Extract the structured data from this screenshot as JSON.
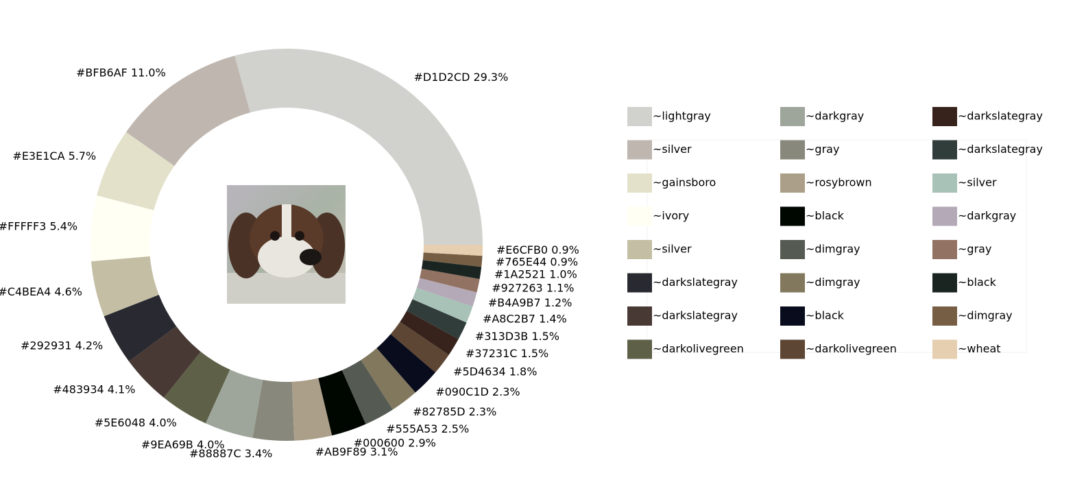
{
  "chart_data": {
    "type": "pie",
    "style": "donut",
    "center_image": "dog-photo",
    "slices": [
      {
        "label": "#D1D2CD 29.3%",
        "value": 29.3,
        "color": "#D1D2CD"
      },
      {
        "label": "#BFB6AF 11.0%",
        "value": 11.0,
        "color": "#BFB6AF"
      },
      {
        "label": "#E3E1CA 5.7%",
        "value": 5.7,
        "color": "#E3E1CA"
      },
      {
        "label": "#FFFFF3 5.4%",
        "value": 5.4,
        "color": "#FFFFF3"
      },
      {
        "label": "#C4BEA4 4.6%",
        "value": 4.6,
        "color": "#C4BEA4"
      },
      {
        "label": "#292931 4.2%",
        "value": 4.2,
        "color": "#292931"
      },
      {
        "label": "#483934 4.1%",
        "value": 4.1,
        "color": "#483934"
      },
      {
        "label": "#5E6048 4.0%",
        "value": 4.0,
        "color": "#5E6048"
      },
      {
        "label": "#9EA69B 4.0%",
        "value": 4.0,
        "color": "#9EA69B"
      },
      {
        "label": "#88887C 3.4%",
        "value": 3.4,
        "color": "#88887C"
      },
      {
        "label": "#AB9F89 3.1%",
        "value": 3.1,
        "color": "#AB9F89"
      },
      {
        "label": "#000600 2.9%",
        "value": 2.9,
        "color": "#000600"
      },
      {
        "label": "#555A53 2.5%",
        "value": 2.5,
        "color": "#555A53"
      },
      {
        "label": "#82785D 2.3%",
        "value": 2.3,
        "color": "#82785D"
      },
      {
        "label": "#090C1D 2.3%",
        "value": 2.3,
        "color": "#090C1D"
      },
      {
        "label": "#5D4634 1.8%",
        "value": 1.8,
        "color": "#5D4634"
      },
      {
        "label": "#37231C 1.5%",
        "value": 1.5,
        "color": "#37231C"
      },
      {
        "label": "#313D3B 1.5%",
        "value": 1.5,
        "color": "#313D3B"
      },
      {
        "label": "#A8C2B7 1.4%",
        "value": 1.4,
        "color": "#A8C2B7"
      },
      {
        "label": "#B4A9B7 1.2%",
        "value": 1.2,
        "color": "#B4A9B7"
      },
      {
        "label": "#927263 1.1%",
        "value": 1.1,
        "color": "#927263"
      },
      {
        "label": "#1A2521 1.0%",
        "value": 1.0,
        "color": "#1A2521"
      },
      {
        "label": "#765E44 0.9%",
        "value": 0.9,
        "color": "#765E44"
      },
      {
        "label": "#E6CFB0 0.9%",
        "value": 0.9,
        "color": "#E6CFB0"
      }
    ],
    "legend": {
      "placement": "right",
      "entries": [
        {
          "label": "~lightgray",
          "color": "#D1D2CD"
        },
        {
          "label": "~silver",
          "color": "#BFB6AF"
        },
        {
          "label": "~gainsboro",
          "color": "#E3E1CA"
        },
        {
          "label": "~ivory",
          "color": "#FFFFF3"
        },
        {
          "label": "~silver",
          "color": "#C4BEA4"
        },
        {
          "label": "~darkslategray",
          "color": "#292931"
        },
        {
          "label": "~darkslategray",
          "color": "#483934"
        },
        {
          "label": "~darkolivegreen",
          "color": "#5E6048"
        },
        {
          "label": "~darkgray",
          "color": "#9EA69B"
        },
        {
          "label": "~gray",
          "color": "#88887C"
        },
        {
          "label": "~rosybrown",
          "color": "#AB9F89"
        },
        {
          "label": "~black",
          "color": "#000600"
        },
        {
          "label": "~dimgray",
          "color": "#555A53"
        },
        {
          "label": "~dimgray",
          "color": "#82785D"
        },
        {
          "label": "~black",
          "color": "#090C1D"
        },
        {
          "label": "~darkolivegreen",
          "color": "#5D4634"
        },
        {
          "label": "~darkslategray",
          "color": "#37231C"
        },
        {
          "label": "~darkslategray",
          "color": "#313D3B"
        },
        {
          "label": "~silver",
          "color": "#A8C2B7"
        },
        {
          "label": "~darkgray",
          "color": "#B4A9B7"
        },
        {
          "label": "~gray",
          "color": "#927263"
        },
        {
          "label": "~black",
          "color": "#1A2521"
        },
        {
          "label": "~dimgray",
          "color": "#765E44"
        },
        {
          "label": "~wheat",
          "color": "#E6CFB0"
        }
      ]
    }
  }
}
